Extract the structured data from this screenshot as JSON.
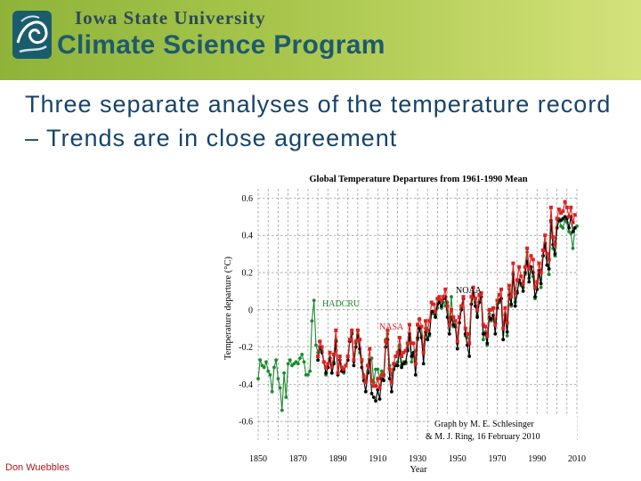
{
  "header": {
    "org": "Iowa State University",
    "program": "Climate Science Program",
    "logo_icon": "isu-swirl-logo-icon"
  },
  "slide": {
    "title": "Three separate analyses of the temperature record – Trends are in close agreement",
    "author": "Don Wuebbles"
  },
  "chart_data": {
    "type": "line",
    "title": "Global Temperature Departures from 1961-1990 Mean",
    "xlabel": "Year",
    "ylabel": "Temperature departure (°C)",
    "xlim": [
      1850,
      2010
    ],
    "ylim": [
      -0.7,
      0.65
    ],
    "x_ticks": [
      1850,
      1870,
      1890,
      1910,
      1930,
      1950,
      1970,
      1990,
      2010
    ],
    "y_ticks": [
      "0.6",
      "0.4",
      "0.2",
      "0",
      "-0.2",
      "-0.4",
      "-0.6"
    ],
    "y_tick_values": [
      0.6,
      0.4,
      0.2,
      0,
      -0.2,
      -0.4,
      -0.6
    ],
    "grid": true,
    "credit": [
      "Graph by M. E. Schlesinger",
      "& M. J. Ring, 16 February 2010"
    ],
    "series": [
      {
        "name": "HADCRU",
        "color": "#1a8a2e",
        "start_year": 1850,
        "values": [
          -0.37,
          -0.27,
          -0.3,
          -0.31,
          -0.28,
          -0.33,
          -0.35,
          -0.44,
          -0.31,
          -0.27,
          -0.37,
          -0.42,
          -0.54,
          -0.34,
          -0.47,
          -0.29,
          -0.27,
          -0.3,
          -0.29,
          -0.28,
          -0.29,
          -0.26,
          -0.24,
          -0.28,
          -0.35,
          -0.35,
          -0.33,
          -0.06,
          0.05,
          -0.19,
          -0.23,
          -0.21,
          -0.22,
          -0.28,
          -0.35,
          -0.31,
          -0.26,
          -0.34,
          -0.28,
          -0.16,
          -0.34,
          -0.25,
          -0.33,
          -0.34,
          -0.3,
          -0.27,
          -0.16,
          -0.12,
          -0.28,
          -0.18,
          -0.13,
          -0.23,
          -0.28,
          -0.35,
          -0.39,
          -0.33,
          -0.27,
          -0.26,
          -0.39,
          -0.32,
          -0.32,
          -0.37,
          -0.33,
          -0.35,
          -0.16,
          -0.13,
          -0.3,
          -0.35,
          -0.29,
          -0.29,
          -0.28,
          -0.19,
          -0.3,
          -0.28,
          -0.29,
          -0.21,
          -0.15,
          -0.28,
          -0.24,
          -0.22,
          -0.16,
          -0.09,
          -0.14,
          -0.22,
          -0.1,
          -0.16,
          -0.14,
          -0.02,
          -0.02,
          -0.03,
          0.01,
          0.05,
          0.01,
          0.04,
          0.02,
          0.04,
          -0.07,
          0.07,
          -0.09,
          -0.08,
          -0.18,
          -0.04,
          0.01,
          0.06,
          -0.14,
          -0.15,
          -0.13,
          0.03,
          0.07,
          0.04,
          -0.03,
          0.04,
          0.09,
          -0.16,
          -0.12,
          -0.19,
          -0.02,
          -0.06,
          -0.03,
          -0.07,
          0.03,
          0.04,
          0.06,
          -0.16,
          -0.02,
          -0.14,
          0.11,
          0.02,
          0.2,
          0.04,
          0.1,
          0.15,
          0.13,
          0.12,
          0.19,
          0.31,
          0.17,
          0.23,
          0.18,
          0.06,
          0.11,
          0.2,
          0.12,
          0.29,
          0.36,
          0.28,
          0.19,
          0.47,
          0.33,
          0.29,
          0.44,
          0.49,
          0.45,
          0.44,
          0.48,
          0.47,
          0.42,
          0.41,
          0.33,
          0.44,
          0.45
        ]
      },
      {
        "name": "NOAA",
        "color": "#000000",
        "start_year": 1880,
        "values": [
          -0.27,
          -0.2,
          -0.23,
          -0.28,
          -0.34,
          -0.31,
          -0.26,
          -0.34,
          -0.29,
          -0.17,
          -0.35,
          -0.27,
          -0.33,
          -0.33,
          -0.3,
          -0.27,
          -0.17,
          -0.13,
          -0.3,
          -0.2,
          -0.14,
          -0.21,
          -0.31,
          -0.38,
          -0.44,
          -0.34,
          -0.27,
          -0.45,
          -0.47,
          -0.49,
          -0.43,
          -0.48,
          -0.37,
          -0.38,
          -0.2,
          -0.16,
          -0.37,
          -0.44,
          -0.32,
          -0.3,
          -0.3,
          -0.22,
          -0.31,
          -0.29,
          -0.28,
          -0.22,
          -0.13,
          -0.25,
          -0.23,
          -0.35,
          -0.15,
          -0.1,
          -0.15,
          -0.29,
          -0.12,
          -0.16,
          -0.13,
          -0.01,
          -0.01,
          -0.04,
          0.03,
          0.04,
          0.02,
          0.06,
          0.07,
          -0.04,
          -0.13,
          -0.04,
          -0.08,
          -0.09,
          -0.21,
          -0.07,
          0.0,
          0.06,
          -0.13,
          -0.19,
          -0.25,
          0.03,
          0.09,
          0.02,
          -0.04,
          0.04,
          0.07,
          -0.13,
          -0.13,
          -0.18,
          -0.04,
          -0.05,
          -0.03,
          -0.13,
          0.01,
          0.05,
          0.06,
          -0.16,
          -0.03,
          -0.12,
          0.08,
          0.03,
          0.19,
          0.02,
          0.09,
          0.16,
          0.14,
          0.1,
          0.2,
          0.26,
          0.15,
          0.23,
          0.2,
          0.07,
          0.11,
          0.21,
          0.14,
          0.29,
          0.35,
          0.24,
          0.22,
          0.48,
          0.35,
          0.3,
          0.44,
          0.48,
          0.48,
          0.49,
          0.5,
          0.49,
          0.44,
          0.5,
          0.42,
          0.44
        ]
      },
      {
        "name": "NASA",
        "color": "#e02020",
        "start_year": 1880,
        "values": [
          -0.25,
          -0.17,
          -0.2,
          -0.28,
          -0.31,
          -0.29,
          -0.23,
          -0.31,
          -0.24,
          -0.11,
          -0.34,
          -0.25,
          -0.31,
          -0.32,
          -0.3,
          -0.25,
          -0.16,
          -0.11,
          -0.27,
          -0.17,
          -0.11,
          -0.16,
          -0.27,
          -0.36,
          -0.39,
          -0.3,
          -0.21,
          -0.38,
          -0.41,
          -0.41,
          -0.37,
          -0.42,
          -0.35,
          -0.35,
          -0.17,
          -0.11,
          -0.32,
          -0.39,
          -0.29,
          -0.25,
          -0.23,
          -0.15,
          -0.25,
          -0.23,
          -0.22,
          -0.18,
          -0.08,
          -0.18,
          -0.18,
          -0.29,
          -0.08,
          -0.05,
          -0.09,
          -0.23,
          -0.06,
          -0.11,
          -0.06,
          0.04,
          0.03,
          -0.01,
          0.06,
          0.07,
          0.05,
          0.07,
          0.11,
          0.02,
          -0.08,
          0.0,
          -0.04,
          -0.06,
          -0.17,
          -0.04,
          0.02,
          0.07,
          -0.1,
          -0.13,
          -0.18,
          0.07,
          0.12,
          0.06,
          0.0,
          0.08,
          0.09,
          -0.08,
          -0.09,
          -0.14,
          0.0,
          0.0,
          0.01,
          -0.08,
          0.05,
          0.08,
          0.11,
          -0.1,
          0.01,
          -0.07,
          0.13,
          0.07,
          0.25,
          0.09,
          0.16,
          0.23,
          0.18,
          0.14,
          0.23,
          0.33,
          0.22,
          0.29,
          0.27,
          0.12,
          0.15,
          0.25,
          0.2,
          0.32,
          0.4,
          0.3,
          0.27,
          0.55,
          0.39,
          0.35,
          0.49,
          0.54,
          0.52,
          0.53,
          0.58,
          0.55,
          0.5,
          0.55,
          0.47,
          0.51
        ]
      }
    ]
  }
}
